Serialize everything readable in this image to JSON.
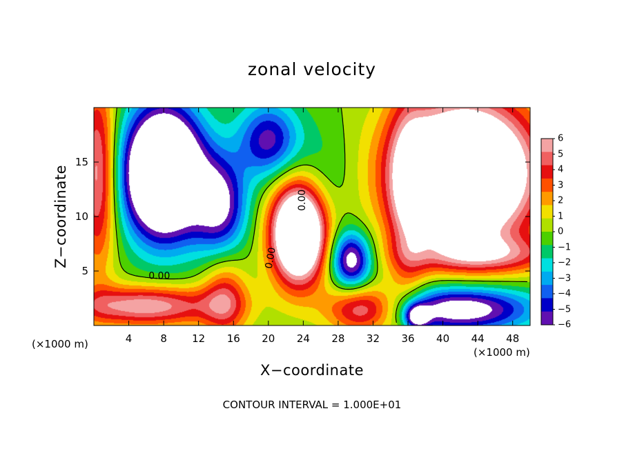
{
  "chart_data": {
    "type": "heatmap",
    "title": "zonal velocity",
    "xlabel": "X−coordinate",
    "ylabel": "Z−coordinate",
    "x_unit": "(×1000 m)",
    "xlim": [
      0,
      50
    ],
    "ylim": [
      0,
      20
    ],
    "x_ticks": [
      "4",
      "8",
      "12",
      "16",
      "20",
      "24",
      "28",
      "32",
      "36",
      "40",
      "44",
      "48"
    ],
    "y_ticks": [
      "5",
      "10",
      "15"
    ],
    "colorbar": {
      "levels": [
        "6",
        "5",
        "4",
        "3",
        "2",
        "1",
        "0",
        "−1",
        "−2",
        "−3",
        "−4",
        "−5",
        "−6"
      ],
      "range": [
        -6,
        6
      ],
      "colors": [
        "#f4a3a3",
        "#f06060",
        "#e61010",
        "#ff5000",
        "#ff9a00",
        "#f2e000",
        "#b0e000",
        "#4cd000",
        "#00c868",
        "#00e0e0",
        "#00aaf0",
        "#1060f0",
        "#0000c8",
        "#6010b0"
      ]
    },
    "contour_labels": [
      "0.00",
      "0.00",
      "0.00"
    ],
    "footnote": "CONTOUR INTERVAL = 1.000E+01"
  }
}
